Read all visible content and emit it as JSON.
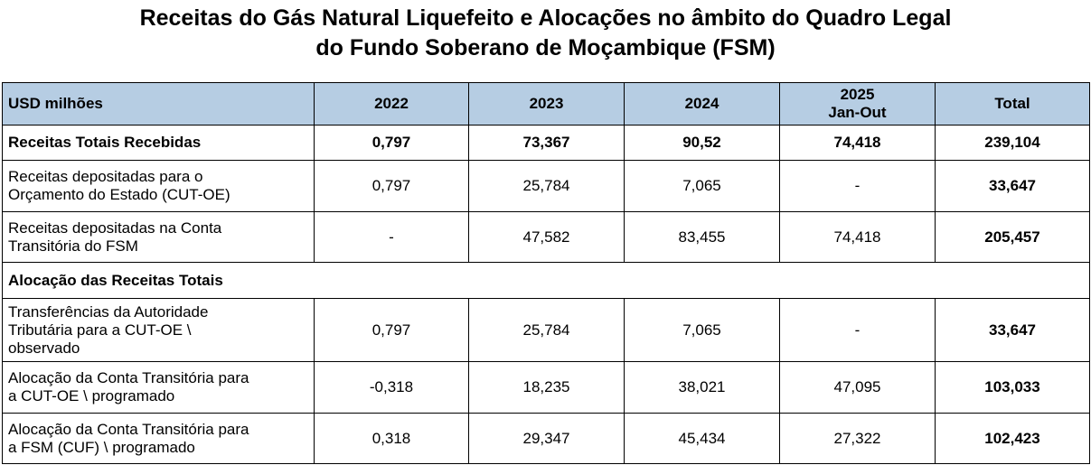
{
  "title": {
    "line1": "Receitas do Gás Natural Liquefeito e Alocações no âmbito do Quadro Legal",
    "line2": "do Fundo Soberano de Moçambique (FSM)"
  },
  "table": {
    "header": {
      "unit": "USD milhões",
      "y2022": "2022",
      "y2023": "2023",
      "y2024": "2024",
      "y2025": "2025",
      "y2025_period": "Jan-Out",
      "total": "Total"
    },
    "rows": {
      "receitas_totais": {
        "label": "Receitas Totais Recebidas",
        "v2022": "0,797",
        "v2023": "73,367",
        "v2024": "90,52",
        "v2025": "74,418",
        "total": "239,104"
      },
      "receitas_cut_oe": {
        "label_line1": "Receitas depositadas para o",
        "label_line2": "Orçamento do Estado (CUT-OE)",
        "v2022": "0,797",
        "v2023": "25,784",
        "v2024": "7,065",
        "v2025": "-",
        "total": "33,647"
      },
      "receitas_transitoria": {
        "label_line1": "Receitas depositadas na Conta",
        "label_line2": "Transitória do FSM",
        "v2022": "-",
        "v2023": "47,582",
        "v2024": "83,455",
        "v2025": "74,418",
        "total": "205,457"
      },
      "alocacao_section": {
        "label": "Alocação das Receitas Totais"
      },
      "transferencias_at": {
        "label_line1": "Transferências da Autoridade",
        "label_line2": "Tributária para a CUT-OE \\",
        "label_line3": "observado",
        "v2022": "0,797",
        "v2023": "25,784",
        "v2024": "7,065",
        "v2025": "-",
        "total": "33,647"
      },
      "alocacao_cut_oe": {
        "label_line1": "Alocação da Conta Transitória para",
        "label_line2": "a CUT-OE \\ programado",
        "v2022": "-0,318",
        "v2023": "18,235",
        "v2024": "38,021",
        "v2025": "47,095",
        "total": "103,033"
      },
      "alocacao_fsm": {
        "label_line1": "Alocação da Conta Transitória para",
        "label_line2": "a FSM (CUF) \\ programado",
        "v2022": "0,318",
        "v2023": "29,347",
        "v2024": "45,434",
        "v2025": "27,322",
        "total": "102,423"
      }
    }
  }
}
